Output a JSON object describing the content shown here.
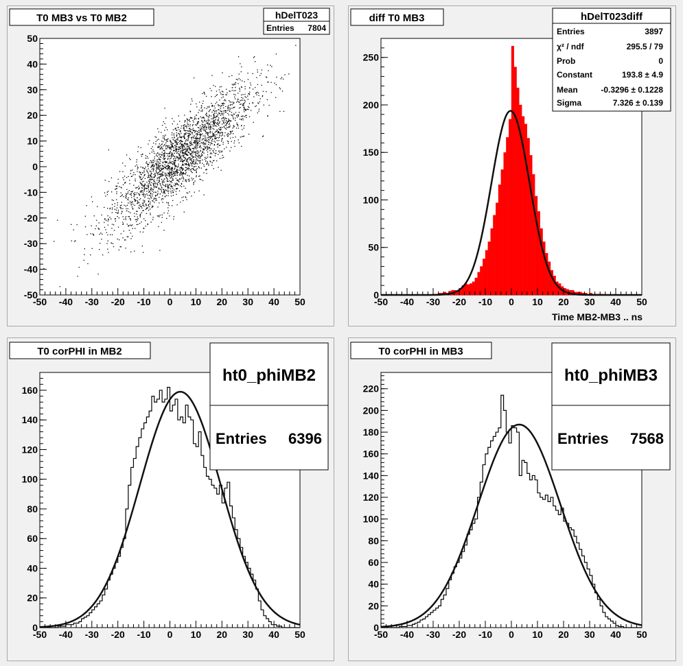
{
  "chart_data": [
    {
      "type": "scatter",
      "title": "T0 MB3 vs T0 MB2",
      "xlabel": "",
      "ylabel": "",
      "xlim": [
        -50,
        50
      ],
      "ylim": [
        -50,
        50
      ],
      "xticks": [
        "-50",
        "-40",
        "-30",
        "-20",
        "-10",
        "0",
        "10",
        "20",
        "30",
        "40",
        "50"
      ],
      "yticks": [
        "-50",
        "-40",
        "-30",
        "-20",
        "-10",
        "0",
        "10",
        "20",
        "30",
        "40",
        "50"
      ],
      "stats": {
        "name": "hDelT023",
        "rows": [
          {
            "label": "Entries",
            "value": "7804"
          }
        ]
      },
      "correlation": {
        "x_mean": 4,
        "y_mean": 4,
        "x_sigma": 14,
        "y_sigma": 14,
        "rho": 0.85
      },
      "entries": 7804
    },
    {
      "type": "bar",
      "title": "diff T0 MB3",
      "xlabel": "Time MB2-MB3  ..  ns",
      "ylabel": "",
      "xlim": [
        -50,
        50
      ],
      "ylim": [
        0,
        270
      ],
      "fill_color": "#ff0000",
      "fit_color": "#111111",
      "xticks": [
        "-50",
        "-40",
        "-30",
        "-20",
        "-10",
        "0",
        "10",
        "20",
        "30",
        "40",
        "50"
      ],
      "yticks": [
        "0",
        "50",
        "100",
        "150",
        "200",
        "250"
      ],
      "bin_width": 1,
      "bins_x": [
        -30,
        -29,
        -28,
        -27,
        -26,
        -25,
        -24,
        -23,
        -22,
        -21,
        -20,
        -19,
        -18,
        -17,
        -16,
        -15,
        -14,
        -13,
        -12,
        -11,
        -10,
        -9,
        -8,
        -7,
        -6,
        -5,
        -4,
        -3,
        -2,
        -1,
        0,
        1,
        2,
        3,
        4,
        5,
        6,
        7,
        8,
        9,
        10,
        11,
        12,
        13,
        14,
        15,
        16,
        17,
        18,
        19,
        20,
        21,
        22,
        23,
        24,
        25,
        26,
        27,
        28,
        29,
        30,
        31,
        32,
        33,
        34
      ],
      "values": [
        1,
        1,
        2,
        2,
        3,
        2,
        4,
        5,
        5,
        4,
        7,
        10,
        12,
        11,
        12,
        14,
        18,
        24,
        30,
        38,
        47,
        56,
        70,
        84,
        97,
        116,
        132,
        150,
        166,
        185,
        262,
        240,
        218,
        200,
        188,
        180,
        165,
        147,
        127,
        104,
        88,
        70,
        56,
        44,
        35,
        26,
        20,
        14,
        12,
        9,
        7,
        6,
        5,
        5,
        3,
        3,
        3,
        2,
        2,
        1,
        2,
        1,
        1,
        1,
        1
      ],
      "fit": {
        "constant": 193.8,
        "mean": -0.3296,
        "sigma": 7.326
      },
      "stats": {
        "name": "hDelT023diff",
        "rows": [
          {
            "label": "Entries",
            "value": "3897"
          },
          {
            "label": "χ² / ndf",
            "value": "295.5 / 79"
          },
          {
            "label": "Prob",
            "value": "0"
          },
          {
            "label": "Constant",
            "value": "193.8 ± 4.9"
          },
          {
            "label": "Mean",
            "value": "-0.3296 ± 0.1228"
          },
          {
            "label": "Sigma",
            "value": "7.326 ± 0.139"
          }
        ]
      }
    },
    {
      "type": "bar",
      "title": "T0 corPHI in MB2",
      "xlabel": "",
      "ylabel": "",
      "xlim": [
        -50,
        50
      ],
      "ylim": [
        0,
        172
      ],
      "fill_color": "none",
      "fit_color": "#111111",
      "xticks": [
        "-50",
        "-40",
        "-30",
        "-20",
        "-10",
        "0",
        "10",
        "20",
        "30",
        "40",
        "50"
      ],
      "yticks": [
        "0",
        "20",
        "40",
        "60",
        "80",
        "100",
        "120",
        "140",
        "160"
      ],
      "bin_width": 1,
      "bins_x": [
        -43,
        -42,
        -41,
        -40,
        -39,
        -38,
        -37,
        -36,
        -35,
        -34,
        -33,
        -32,
        -31,
        -30,
        -29,
        -28,
        -27,
        -26,
        -25,
        -24,
        -23,
        -22,
        -21,
        -20,
        -19,
        -18,
        -17,
        -16,
        -15,
        -14,
        -13,
        -12,
        -11,
        -10,
        -9,
        -8,
        -7,
        -6,
        -5,
        -4,
        -3,
        -2,
        -1,
        0,
        1,
        2,
        3,
        4,
        5,
        6,
        7,
        8,
        9,
        10,
        11,
        12,
        13,
        14,
        15,
        16,
        17,
        18,
        19,
        20,
        21,
        22,
        23,
        24,
        25,
        26,
        27,
        28,
        29,
        30,
        31,
        32,
        33,
        34,
        35,
        36,
        37,
        38,
        39,
        40,
        41,
        42
      ],
      "values": [
        1,
        1,
        1,
        2,
        2,
        2,
        3,
        3,
        4,
        6,
        7,
        8,
        10,
        12,
        14,
        16,
        18,
        22,
        26,
        32,
        36,
        40,
        44,
        48,
        54,
        60,
        80,
        96,
        108,
        114,
        122,
        128,
        134,
        138,
        142,
        146,
        156,
        152,
        154,
        160,
        152,
        154,
        162,
        146,
        150,
        154,
        140,
        142,
        138,
        150,
        142,
        140,
        124,
        122,
        132,
        116,
        108,
        102,
        100,
        96,
        94,
        90,
        96,
        84,
        94,
        98,
        82,
        74,
        66,
        60,
        54,
        48,
        44,
        40,
        36,
        32,
        26,
        18,
        12,
        8,
        6,
        4,
        2,
        2,
        1,
        1
      ],
      "fit": {
        "constant": 159,
        "mean": 4,
        "sigma": 15.5
      },
      "stats": {
        "name": "ht0_phiMB2",
        "rows": [
          {
            "label": "Entries",
            "value": "6396"
          }
        ]
      }
    },
    {
      "type": "bar",
      "title": "T0 corPHI in MB3",
      "xlabel": "",
      "ylabel": "",
      "xlim": [
        -50,
        50
      ],
      "ylim": [
        0,
        235
      ],
      "fill_color": "none",
      "fit_color": "#111111",
      "xticks": [
        "-50",
        "-40",
        "-30",
        "-20",
        "-10",
        "0",
        "10",
        "20",
        "30",
        "40",
        "50"
      ],
      "yticks": [
        "0",
        "20",
        "40",
        "60",
        "80",
        "100",
        "120",
        "140",
        "160",
        "180",
        "200",
        "220"
      ],
      "bin_width": 1,
      "bins_x": [
        -43,
        -42,
        -41,
        -40,
        -39,
        -38,
        -37,
        -36,
        -35,
        -34,
        -33,
        -32,
        -31,
        -30,
        -29,
        -28,
        -27,
        -26,
        -25,
        -24,
        -23,
        -22,
        -21,
        -20,
        -19,
        -18,
        -17,
        -16,
        -15,
        -14,
        -13,
        -12,
        -11,
        -10,
        -9,
        -8,
        -7,
        -6,
        -5,
        -4,
        -3,
        -2,
        -1,
        0,
        1,
        2,
        3,
        4,
        5,
        6,
        7,
        8,
        9,
        10,
        11,
        12,
        13,
        14,
        15,
        16,
        17,
        18,
        19,
        20,
        21,
        22,
        23,
        24,
        25,
        26,
        27,
        28,
        29,
        30,
        31,
        32,
        33,
        34,
        35,
        36,
        37,
        38,
        39,
        40,
        41,
        42
      ],
      "values": [
        1,
        1,
        1,
        2,
        2,
        3,
        4,
        5,
        7,
        8,
        10,
        12,
        14,
        16,
        18,
        20,
        26,
        30,
        36,
        44,
        50,
        56,
        60,
        64,
        70,
        76,
        86,
        90,
        96,
        100,
        120,
        134,
        150,
        160,
        166,
        172,
        176,
        180,
        184,
        214,
        200,
        180,
        170,
        186,
        184,
        180,
        140,
        154,
        152,
        142,
        136,
        140,
        136,
        124,
        120,
        118,
        122,
        116,
        120,
        112,
        108,
        104,
        110,
        98,
        96,
        92,
        90,
        84,
        78,
        72,
        66,
        60,
        54,
        48,
        40,
        32,
        26,
        20,
        14,
        10,
        8,
        6,
        4,
        2,
        1,
        1
      ],
      "fit": {
        "constant": 187,
        "mean": 3,
        "sigma": 15.8
      },
      "stats": {
        "name": "ht0_phiMB3",
        "rows": [
          {
            "label": "Entries",
            "value": "7568"
          }
        ]
      }
    }
  ]
}
